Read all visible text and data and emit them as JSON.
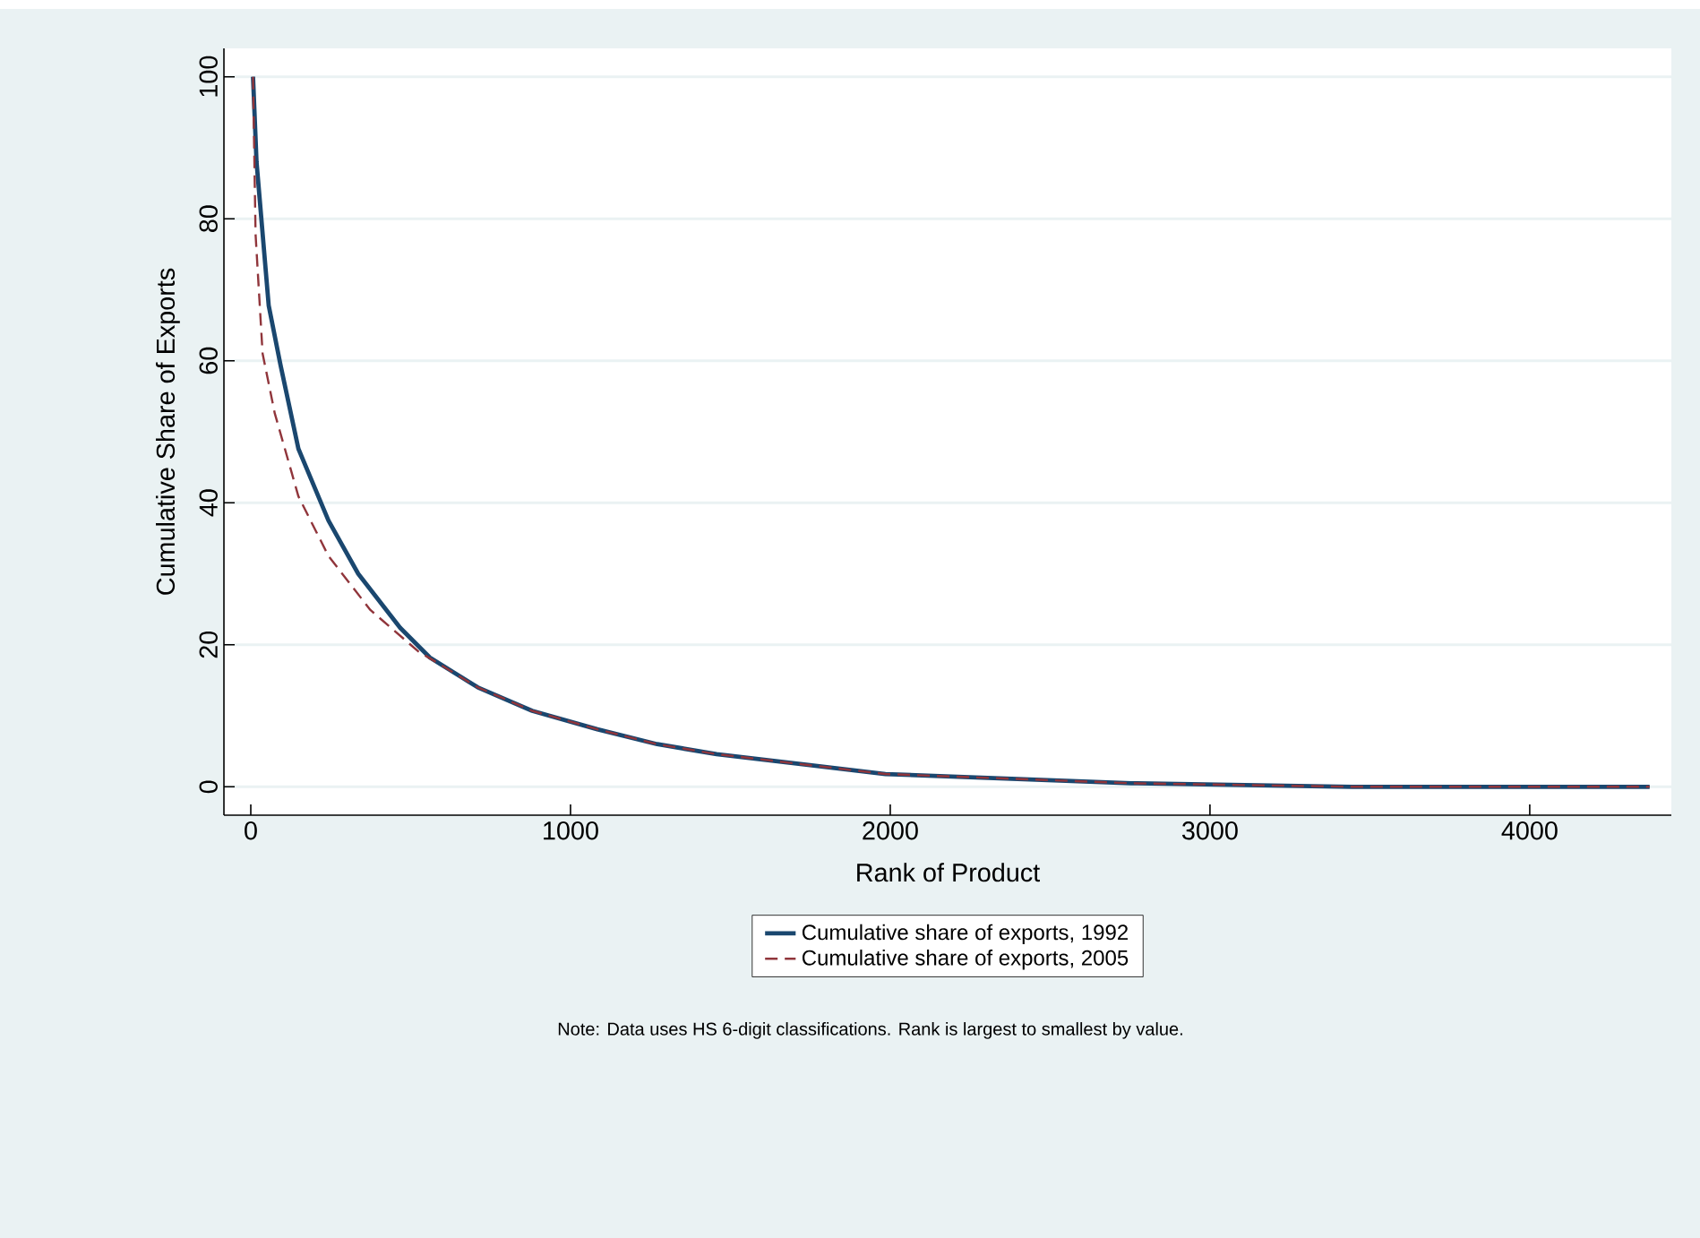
{
  "chart_data": {
    "type": "line",
    "xlabel": "Rank of Product",
    "ylabel": "Cumulative Share of Exports",
    "xlim": [
      -84,
      4443
    ],
    "ylim": [
      -4,
      104
    ],
    "xticks": [
      0,
      1000,
      2000,
      3000,
      4000
    ],
    "yticks": [
      0,
      20,
      40,
      60,
      80,
      100
    ],
    "grid": "y",
    "legend": "bottom",
    "marker": "none",
    "series": [
      {
        "name": "Cumulative share of exports, 1992",
        "color": "#1a476f",
        "line_style": "solid",
        "x": [
          7,
          18,
          56,
          93,
          149,
          243,
          336,
          467,
          560,
          710,
          880,
          1084,
          1271,
          1457,
          1737,
          1985,
          2754,
          3445,
          4375
        ],
        "values": [
          100,
          88,
          67.8,
          59.4,
          47.6,
          37.5,
          30,
          22.4,
          18.2,
          14,
          10.7,
          8.1,
          6,
          4.6,
          3.1,
          1.8,
          0.5,
          0,
          0
        ]
      },
      {
        "name": "Cumulative share of exports, 2005",
        "color": "#90353b",
        "line_style": "dashed",
        "x": [
          7,
          15,
          37,
          75,
          149,
          243,
          374,
          523,
          710,
          880,
          1084,
          1271,
          1457,
          1737,
          1985,
          2754,
          3445,
          4375
        ],
        "values": [
          100,
          77.8,
          61,
          52.6,
          40.9,
          32.5,
          24.9,
          19.1,
          14,
          10.7,
          8.1,
          6,
          4.6,
          3.1,
          1.8,
          0.5,
          0,
          0
        ]
      }
    ],
    "annotations": [
      "Note:  Data uses HS 6-digit classifications.  Rank is largest to smallest by value."
    ]
  }
}
